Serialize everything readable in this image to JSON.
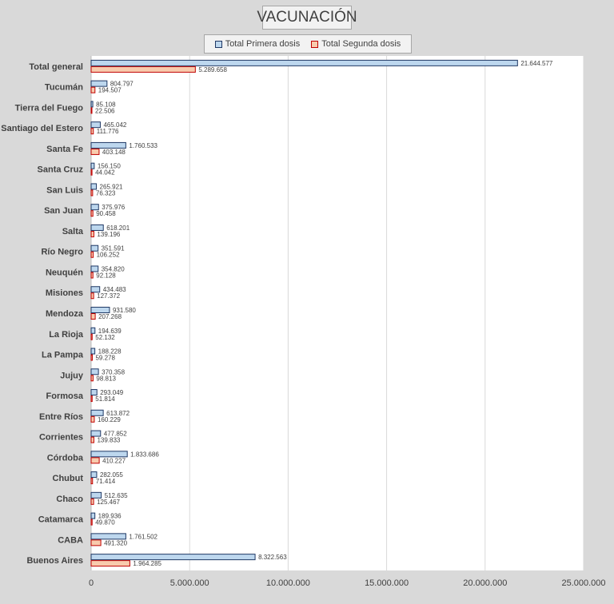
{
  "chart_data": {
    "type": "bar",
    "orientation": "horizontal",
    "title": "VACUNACIÓN",
    "categories": [
      "Total general",
      "Tucumán",
      "Tierra del Fuego",
      "Santiago del Estero",
      "Santa Fe",
      "Santa Cruz",
      "San Luis",
      "San Juan",
      "Salta",
      "Río Negro",
      "Neuquén",
      "Misiones",
      "Mendoza",
      "La Rioja",
      "La Pampa",
      "Jujuy",
      "Formosa",
      "Entre Ríos",
      "Corrientes",
      "Córdoba",
      "Chubut",
      "Chaco",
      "Catamarca",
      "CABA",
      "Buenos Aires"
    ],
    "series": [
      {
        "name": "Total Primera dosis",
        "color": "#bdd7ee",
        "border": "#1f3864",
        "values": [
          21644577,
          804797,
          85108,
          465042,
          1760533,
          156150,
          265921,
          375976,
          618201,
          351591,
          354820,
          434483,
          931580,
          194639,
          188228,
          370358,
          293049,
          613872,
          477852,
          1833686,
          282055,
          512635,
          189936,
          1761502,
          8322563
        ],
        "labels": [
          "21.644.577",
          "804.797",
          "85.108",
          "465.042",
          "1.760.533",
          "156.150",
          "265.921",
          "375.976",
          "618.201",
          "351.591",
          "354.820",
          "434.483",
          "931.580",
          "194.639",
          "188.228",
          "370.358",
          "293.049",
          "613.872",
          "477.852",
          "1.833.686",
          "282.055",
          "512.635",
          "189.936",
          "1.761.502",
          "8.322.563"
        ]
      },
      {
        "name": "Total Segunda dosis",
        "color": "#f8cbad",
        "border": "#c00000",
        "values": [
          5289658,
          194507,
          22506,
          111776,
          403148,
          44042,
          76323,
          90458,
          139196,
          106252,
          92128,
          127372,
          207268,
          52132,
          59278,
          98813,
          51814,
          160229,
          139833,
          410227,
          71414,
          125467,
          49870,
          491320,
          1964285
        ],
        "labels": [
          "5.289.658",
          "194.507",
          "22.506",
          "111.776",
          "403.148",
          "44.042",
          "76.323",
          "90.458",
          "139.196",
          "106.252",
          "92.128",
          "127.372",
          "207.268",
          "52.132",
          "59.278",
          "98.813",
          "51.814",
          "160.229",
          "139.833",
          "410.227",
          "71.414",
          "125.467",
          "49.870",
          "491.320",
          "1.964.285"
        ]
      }
    ],
    "xlim": [
      0,
      25000000
    ],
    "xticks": [
      0,
      5000000,
      10000000,
      15000000,
      20000000,
      25000000
    ],
    "xtick_labels": [
      "0",
      "5.000.000",
      "10.000.000",
      "15.000.000",
      "20.000.000",
      "25.000.000"
    ],
    "grid": true,
    "legend_position": "top"
  }
}
